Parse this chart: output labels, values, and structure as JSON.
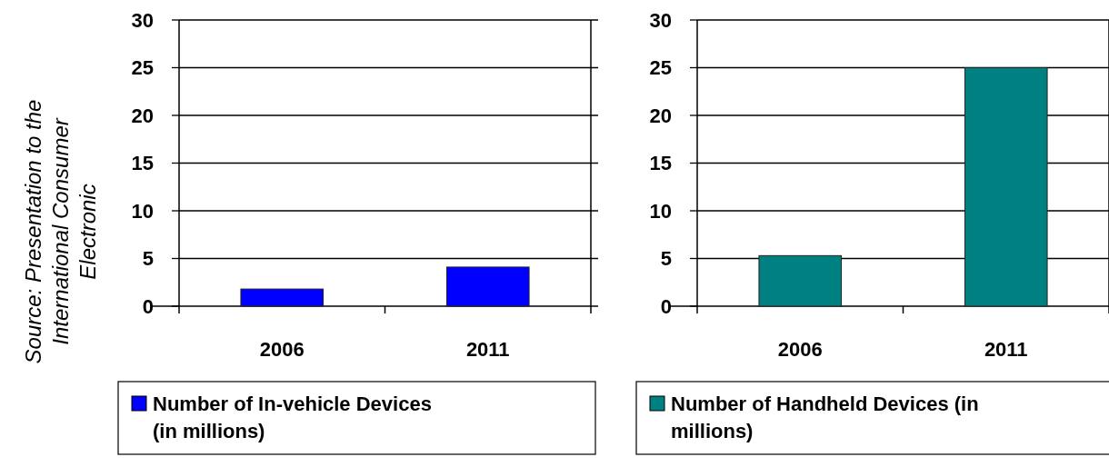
{
  "chart_data": [
    {
      "type": "bar",
      "categories": [
        "2006",
        "2011"
      ],
      "series": [
        {
          "name": "Number of In-vehicle Devices (in millions)",
          "color": "#0000ff",
          "values": [
            1.8,
            4.1
          ]
        }
      ],
      "ylim": [
        0,
        30
      ],
      "yticks": [
        0,
        5,
        10,
        15,
        20,
        25,
        30
      ],
      "grid": "y",
      "legend": "bottom",
      "annotations": [
        "Source: Presentation to the International Consumer Electronic"
      ]
    },
    {
      "type": "bar",
      "categories": [
        "2006",
        "2011"
      ],
      "series": [
        {
          "name": "Number of Handheld Devices (in millions)",
          "color": "#008080",
          "values": [
            5.3,
            25
          ]
        }
      ],
      "ylim": [
        0,
        30
      ],
      "yticks": [
        0,
        5,
        10,
        15,
        20,
        25,
        30
      ],
      "grid": "y",
      "legend": "bottom"
    }
  ]
}
